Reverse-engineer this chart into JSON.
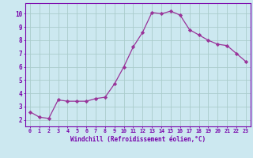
{
  "x": [
    0,
    1,
    2,
    3,
    4,
    5,
    6,
    7,
    8,
    9,
    10,
    11,
    12,
    13,
    14,
    15,
    16,
    17,
    18,
    19,
    20,
    21,
    22,
    23
  ],
  "y": [
    2.6,
    2.2,
    2.1,
    3.5,
    3.4,
    3.4,
    3.4,
    3.6,
    3.7,
    4.7,
    6.0,
    7.5,
    8.6,
    10.1,
    10.0,
    10.2,
    9.9,
    8.8,
    8.4,
    8.0,
    7.7,
    7.6,
    7.0,
    6.4
  ],
  "line_color": "#993399",
  "marker": "D",
  "marker_size": 2.2,
  "bg_color": "#cce8f0",
  "grid_color": "#aacccc",
  "xlabel": "Windchill (Refroidissement éolien,°C)",
  "xlim": [
    -0.5,
    23.5
  ],
  "ylim": [
    1.5,
    10.8
  ],
  "yticks": [
    2,
    3,
    4,
    5,
    6,
    7,
    8,
    9,
    10
  ],
  "xtick_labels": [
    "0",
    "1",
    "2",
    "3",
    "4",
    "5",
    "6",
    "7",
    "8",
    "9",
    "10",
    "11",
    "12",
    "13",
    "14",
    "15",
    "16",
    "17",
    "18",
    "19",
    "20",
    "21",
    "22",
    "23"
  ],
  "tick_color": "#7700aa",
  "axis_color": "#7700aa",
  "font_name": "monospace"
}
